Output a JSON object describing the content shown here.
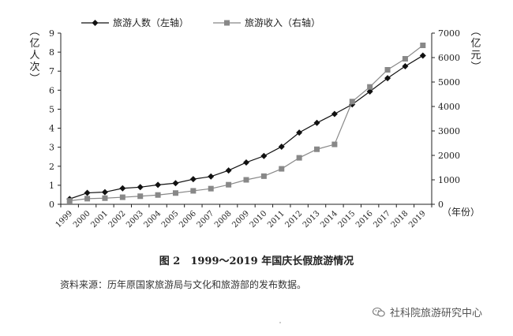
{
  "chart_data": {
    "type": "line",
    "x": [
      "1999",
      "2000",
      "2001",
      "2002",
      "2003",
      "2004",
      "2005",
      "2006",
      "2007",
      "2008",
      "2009",
      "2010",
      "2011",
      "2012",
      "2013",
      "2014",
      "2015",
      "2016",
      "2017",
      "2018",
      "2019"
    ],
    "left_axis": {
      "label": "亿人次",
      "ylim": [
        0,
        9
      ],
      "ticks": [
        "0",
        "1",
        "2",
        "3",
        "4",
        "5",
        "6",
        "7",
        "8",
        "9"
      ]
    },
    "right_axis": {
      "label": "亿元",
      "ylim": [
        0,
        7000
      ],
      "ticks": [
        "0",
        "1000",
        "2000",
        "3000",
        "4000",
        "5000",
        "6000",
        "7000"
      ]
    },
    "x_unit": "（年份）",
    "series": [
      {
        "name": "旅游人数（左轴）",
        "axis": "left",
        "color": "#111111",
        "marker": "diamond",
        "values": [
          0.28,
          0.6,
          0.64,
          0.84,
          0.9,
          1.02,
          1.11,
          1.32,
          1.46,
          1.78,
          2.2,
          2.54,
          3.03,
          3.77,
          4.28,
          4.75,
          5.25,
          5.93,
          6.63,
          7.26,
          7.82
        ]
      },
      {
        "name": "旅游收入（右轴）",
        "axis": "right",
        "color": "#888888",
        "marker": "square",
        "values": [
          141,
          230,
          250,
          288,
          330,
          380,
          460,
          550,
          640,
          800,
          1000,
          1150,
          1450,
          1900,
          2250,
          2450,
          4200,
          4800,
          5500,
          5950,
          6500
        ]
      }
    ],
    "legend": "top",
    "grid": false
  },
  "caption": "图 2　1999～2019 年国庆长假旅游情况",
  "source": "资料来源：历年原国家旅游局与文化和旅游部的发布数据。",
  "watermark": "社科院旅游研究中心"
}
